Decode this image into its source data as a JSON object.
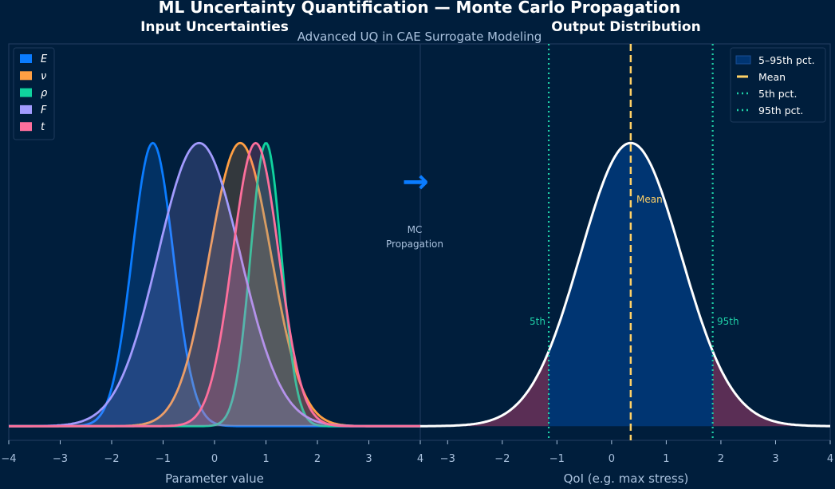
{
  "title": "ML Uncertainty Quantification — Monte Carlo Propagation",
  "subtitle": "Advanced UQ in CAE Surrogate Modeling",
  "colors": {
    "background": "#001e3c",
    "frame": "#1e3a5c",
    "text": "#a9c1dd",
    "mean": "#ffd166",
    "percentile": "#1fd1a8",
    "band": "#003572",
    "tail": "#5a2e55",
    "output_curve": "#ffffff",
    "arrow": "#0a7cff"
  },
  "chart_data": [
    {
      "type": "line",
      "title": "Input Uncertainties",
      "xlabel": "Parameter value",
      "ylabel": "",
      "xlim": [
        -4,
        4
      ],
      "ylim": [
        -0.05,
        1.35
      ],
      "xticks": [
        "−4",
        "−3",
        "−2",
        "−1",
        "0",
        "1",
        "2",
        "3",
        "4"
      ],
      "grid": false,
      "legend_position": "top-left",
      "series": [
        {
          "name": "E",
          "color": "#0a7cff",
          "mean": -1.2,
          "std": 0.4
        },
        {
          "name": "ν",
          "color": "#ff9f43",
          "mean": 0.5,
          "std": 0.6
        },
        {
          "name": "ρ",
          "color": "#10d39e",
          "mean": 1.0,
          "std": 0.3
        },
        {
          "name": "F",
          "color": "#a29bfe",
          "mean": -0.3,
          "std": 0.8
        },
        {
          "name": "t",
          "color": "#fd6f9c",
          "mean": 0.8,
          "std": 0.45
        }
      ],
      "annotation": {
        "arrow": "→",
        "text_line1": "MC",
        "text_line2": "Propagation"
      }
    },
    {
      "type": "area",
      "title": "Output Distribution",
      "xlabel": "QoI (e.g. max stress)",
      "ylabel": "",
      "xlim": [
        -3.5,
        4
      ],
      "ylim": [
        -0.05,
        1.35
      ],
      "xticks": [
        "−3",
        "−2",
        "−1",
        "0",
        "1",
        "2",
        "3",
        "4"
      ],
      "grid": false,
      "legend_position": "top-right",
      "distribution": {
        "mean": 0.35,
        "std": 0.92
      },
      "p5": -1.15,
      "p95": 1.85,
      "legend": [
        "5–95th pct.",
        "Mean",
        "5th pct.",
        "95th pct."
      ],
      "labels": {
        "mean": "Mean",
        "p5": "5th",
        "p95": "95th"
      }
    }
  ]
}
